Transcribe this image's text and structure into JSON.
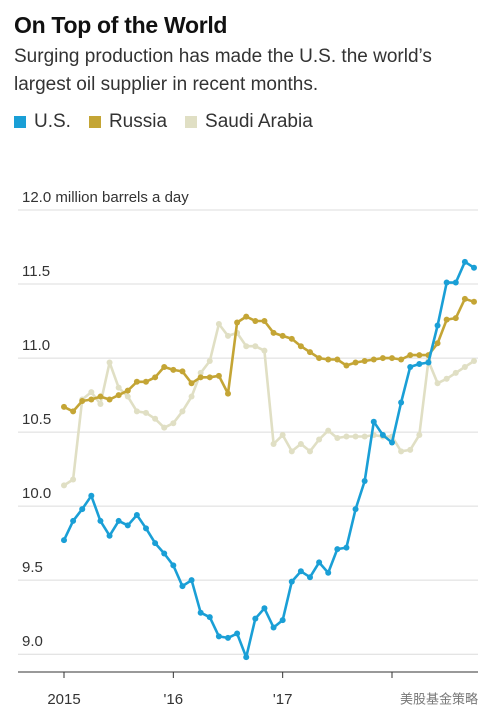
{
  "chart_data": {
    "type": "line",
    "title": "On Top of the World",
    "subtitle": "Surging production has made the U.S. the world’s largest oil supplier in recent months.",
    "categories": [
      "2015",
      null,
      null,
      null,
      null,
      null,
      null,
      null,
      null,
      null,
      null,
      null,
      "'16",
      null,
      null,
      null,
      null,
      null,
      null,
      null,
      null,
      null,
      null,
      null,
      "'17",
      null,
      null,
      null,
      null,
      null,
      null,
      null,
      null,
      null,
      null,
      null,
      null,
      null,
      null,
      null,
      null,
      null,
      null,
      null,
      null,
      null
    ],
    "series": [
      {
        "name": "U.S.",
        "color": "#1a9fd6",
        "values": [
          9.77,
          9.9,
          9.98,
          10.07,
          9.9,
          9.8,
          9.9,
          9.87,
          9.94,
          9.85,
          9.75,
          9.68,
          9.6,
          9.46,
          9.5,
          9.28,
          9.25,
          9.12,
          9.11,
          9.14,
          8.98,
          9.24,
          9.31,
          9.18,
          9.23,
          9.49,
          9.56,
          9.52,
          9.62,
          9.55,
          9.71,
          9.72,
          9.98,
          10.17,
          10.57,
          10.48,
          10.43,
          10.7,
          10.94,
          10.96,
          10.97,
          11.22,
          11.51,
          11.51,
          11.65,
          11.61
        ]
      },
      {
        "name": "Russia",
        "color": "#c4a535",
        "values": [
          10.67,
          10.64,
          10.71,
          10.72,
          10.74,
          10.72,
          10.75,
          10.78,
          10.84,
          10.84,
          10.87,
          10.94,
          10.92,
          10.91,
          10.83,
          10.87,
          10.87,
          10.88,
          10.76,
          11.24,
          11.28,
          11.25,
          11.25,
          11.17,
          11.15,
          11.13,
          11.08,
          11.04,
          11.0,
          10.99,
          10.99,
          10.95,
          10.97,
          10.98,
          10.99,
          11.0,
          11.0,
          10.99,
          11.02,
          11.02,
          11.02,
          11.1,
          11.26,
          11.27,
          11.4,
          11.38
        ]
      },
      {
        "name": "Saudi Arabia",
        "color": "#e0dfc4",
        "values": [
          10.14,
          10.18,
          10.72,
          10.77,
          10.69,
          10.97,
          10.8,
          10.74,
          10.64,
          10.63,
          10.59,
          10.53,
          10.56,
          10.64,
          10.74,
          10.9,
          10.98,
          11.23,
          11.15,
          11.17,
          11.08,
          11.08,
          11.05,
          10.42,
          10.48,
          10.37,
          10.42,
          10.37,
          10.45,
          10.51,
          10.46,
          10.47,
          10.47,
          10.47,
          10.48,
          10.47,
          10.47,
          10.37,
          10.38,
          10.48,
          10.98,
          10.83,
          10.86,
          10.9,
          10.94,
          10.98
        ]
      }
    ],
    "ylim": [
      8.9,
      12.0
    ],
    "yticks": [
      {
        "value": 9.0,
        "label": "9.0"
      },
      9.5,
      {
        "value": 10.0,
        "label": "10.0"
      },
      10.5,
      {
        "value": 11.0,
        "label": "11.0"
      },
      11.5,
      {
        "value": 12.0,
        "label": "12.0 million barrels a day"
      }
    ],
    "grid": true,
    "watermark": "美股基金策略"
  }
}
